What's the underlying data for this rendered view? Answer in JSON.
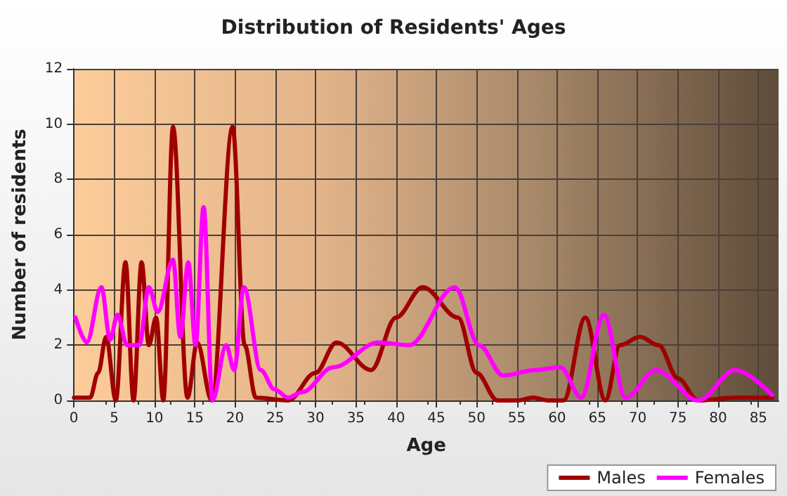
{
  "chart_data": {
    "type": "line",
    "title": "Distribution of Residents' Ages",
    "xlabel": "Age",
    "ylabel": "Number of residents",
    "xlim": [
      0,
      87.5
    ],
    "xticks": [
      0,
      5,
      10,
      15,
      20,
      25,
      30,
      35,
      40,
      45,
      50,
      55,
      60,
      65,
      70,
      75,
      80,
      85
    ],
    "ylim": [
      0,
      12
    ],
    "yticks": [
      0,
      2,
      4,
      6,
      8,
      10,
      12
    ],
    "grid": true,
    "legend": "bottom right",
    "marker": "none",
    "line_style": "solid",
    "series": [
      {
        "name": "Males",
        "color": "#a00000",
        "x": [
          0,
          2,
          3,
          4,
          5.2,
          6.4,
          7.4,
          8.4,
          9.3,
          10.2,
          11.1,
          12.3,
          14.1,
          15.3,
          17.1,
          19.7,
          21.2,
          22.6,
          26.6,
          30,
          32.6,
          36.9,
          40,
          43.3,
          47.7,
          50,
          52.6,
          55,
          57,
          59,
          60.8,
          63.5,
          66,
          67.8,
          70.3,
          72.6,
          75,
          77.5,
          82.1,
          86.7
        ],
        "values": [
          0.1,
          0.1,
          1,
          2.3,
          0,
          5,
          0,
          5,
          2,
          3,
          0,
          9.9,
          0.1,
          2.1,
          0,
          9.9,
          2,
          0.1,
          0,
          1,
          2.1,
          1.1,
          3,
          4.1,
          3,
          1,
          0,
          0,
          0.1,
          0,
          0,
          3,
          0,
          2,
          2.3,
          2,
          0.8,
          0,
          0.1,
          0.1
        ]
      },
      {
        "name": "Females",
        "color": "#ff00ff",
        "x": [
          0.2,
          1.6,
          3.4,
          4.5,
          5.4,
          6.6,
          8.1,
          9.3,
          10.4,
          12.3,
          13.2,
          14.2,
          15.1,
          16.1,
          17.2,
          18.9,
          19.9,
          21.1,
          23.2,
          24.9,
          26.6,
          28.3,
          32.2,
          37.8,
          41.6,
          47.3,
          50.3,
          53.3,
          57.3,
          60.4,
          63,
          65.8,
          68.5,
          72.3,
          77.5,
          82.1,
          86.7
        ],
        "values": [
          3,
          2.1,
          4.1,
          2.2,
          3.1,
          2,
          2,
          4.1,
          3.2,
          5.1,
          2.3,
          5,
          2,
          7,
          0,
          2,
          1.1,
          4.1,
          1.1,
          0.4,
          0.1,
          0.3,
          1.2,
          2.1,
          2,
          4.1,
          2,
          0.9,
          1.1,
          1.2,
          0.1,
          3.1,
          0.1,
          1.1,
          0,
          1.1,
          0.2
        ]
      }
    ]
  }
}
